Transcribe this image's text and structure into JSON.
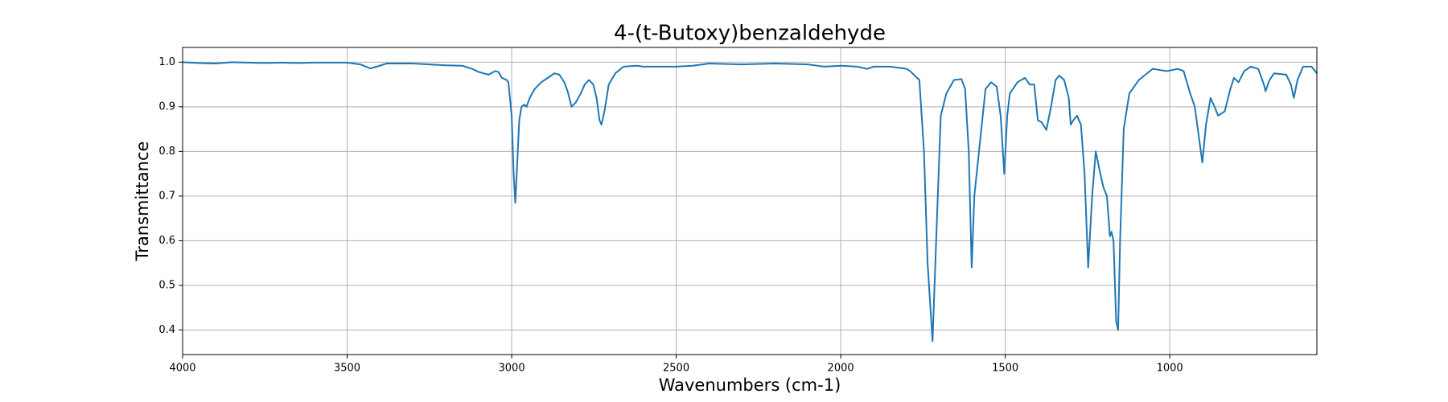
{
  "chart_data": {
    "type": "line",
    "title": "4-(t-Butoxy)benzaldehyde",
    "x_label": "Wavenumbers (cm-1)",
    "y_label": "Transmittance",
    "xlim": [
      4000,
      553
    ],
    "ylim": [
      0.345,
      1.033
    ],
    "xticks": [
      4000,
      3500,
      3000,
      2500,
      2000,
      1500,
      1000
    ],
    "yticks": [
      0.4,
      0.5,
      0.6,
      0.7,
      0.8,
      0.9,
      {
        "value": 1,
        "label": "1.0"
      }
    ],
    "grid": true,
    "series": [
      {
        "color": "#1f77b4",
        "x": [
          4000,
          3950,
          3900,
          3850,
          3800,
          3750,
          3700,
          3650,
          3600,
          3550,
          3500,
          3460,
          3430,
          3410,
          3380,
          3300,
          3250,
          3200,
          3150,
          3120,
          3100,
          3070,
          3050,
          3040,
          3030,
          3015,
          3010,
          3000,
          2994,
          2989,
          2984,
          2977,
          2970,
          2962,
          2955,
          2945,
          2930,
          2910,
          2890,
          2870,
          2855,
          2840,
          2830,
          2818,
          2805,
          2790,
          2778,
          2765,
          2752,
          2742,
          2733,
          2727,
          2718,
          2705,
          2685,
          2660,
          2620,
          2600,
          2500,
          2450,
          2400,
          2300,
          2200,
          2100,
          2050,
          2000,
          1950,
          1920,
          1900,
          1850,
          1800,
          1789,
          1761,
          1747,
          1736,
          1721,
          1710,
          1696,
          1679,
          1656,
          1633,
          1622,
          1611,
          1602,
          1594,
          1577,
          1560,
          1543,
          1526,
          1514,
          1503,
          1494,
          1486,
          1463,
          1440,
          1426,
          1412,
          1401,
          1389,
          1375,
          1361,
          1347,
          1336,
          1321,
          1307,
          1301,
          1293,
          1282,
          1270,
          1259,
          1248,
          1236,
          1225,
          1214,
          1202,
          1191,
          1182,
          1177,
          1171,
          1163,
          1157,
          1151,
          1140,
          1123,
          1094,
          1052,
          1009,
          975,
          958,
          938,
          924,
          913,
          901,
          890,
          876,
          864,
          853,
          833,
          816,
          805,
          791,
          774,
          754,
          731,
          714,
          709,
          697,
          683,
          646,
          632,
          623,
          612,
          595,
          569,
          553
        ],
        "values": [
          1.0,
          0.998,
          0.997,
          1.0,
          0.999,
          0.998,
          0.999,
          0.998,
          0.999,
          0.999,
          0.999,
          0.995,
          0.986,
          0.99,
          0.997,
          0.997,
          0.995,
          0.993,
          0.992,
          0.985,
          0.978,
          0.972,
          0.98,
          0.978,
          0.965,
          0.96,
          0.955,
          0.88,
          0.75,
          0.685,
          0.76,
          0.87,
          0.9,
          0.905,
          0.9,
          0.92,
          0.94,
          0.955,
          0.965,
          0.975,
          0.972,
          0.955,
          0.935,
          0.9,
          0.91,
          0.93,
          0.95,
          0.96,
          0.95,
          0.92,
          0.87,
          0.86,
          0.89,
          0.95,
          0.975,
          0.99,
          0.992,
          0.99,
          0.99,
          0.992,
          0.997,
          0.995,
          0.997,
          0.995,
          0.99,
          0.992,
          0.99,
          0.985,
          0.99,
          0.99,
          0.985,
          0.98,
          0.96,
          0.8,
          0.55,
          0.375,
          0.6,
          0.88,
          0.93,
          0.96,
          0.962,
          0.94,
          0.8,
          0.54,
          0.7,
          0.82,
          0.94,
          0.955,
          0.945,
          0.88,
          0.75,
          0.88,
          0.93,
          0.955,
          0.965,
          0.95,
          0.95,
          0.87,
          0.865,
          0.848,
          0.9,
          0.96,
          0.97,
          0.96,
          0.92,
          0.86,
          0.87,
          0.88,
          0.86,
          0.75,
          0.54,
          0.7,
          0.8,
          0.76,
          0.72,
          0.7,
          0.61,
          0.62,
          0.6,
          0.42,
          0.4,
          0.6,
          0.85,
          0.93,
          0.96,
          0.985,
          0.98,
          0.985,
          0.98,
          0.93,
          0.9,
          0.84,
          0.775,
          0.86,
          0.92,
          0.9,
          0.88,
          0.89,
          0.94,
          0.965,
          0.955,
          0.98,
          0.99,
          0.985,
          0.95,
          0.935,
          0.96,
          0.975,
          0.972,
          0.95,
          0.92,
          0.96,
          0.99,
          0.99,
          0.975
        ]
      }
    ]
  }
}
